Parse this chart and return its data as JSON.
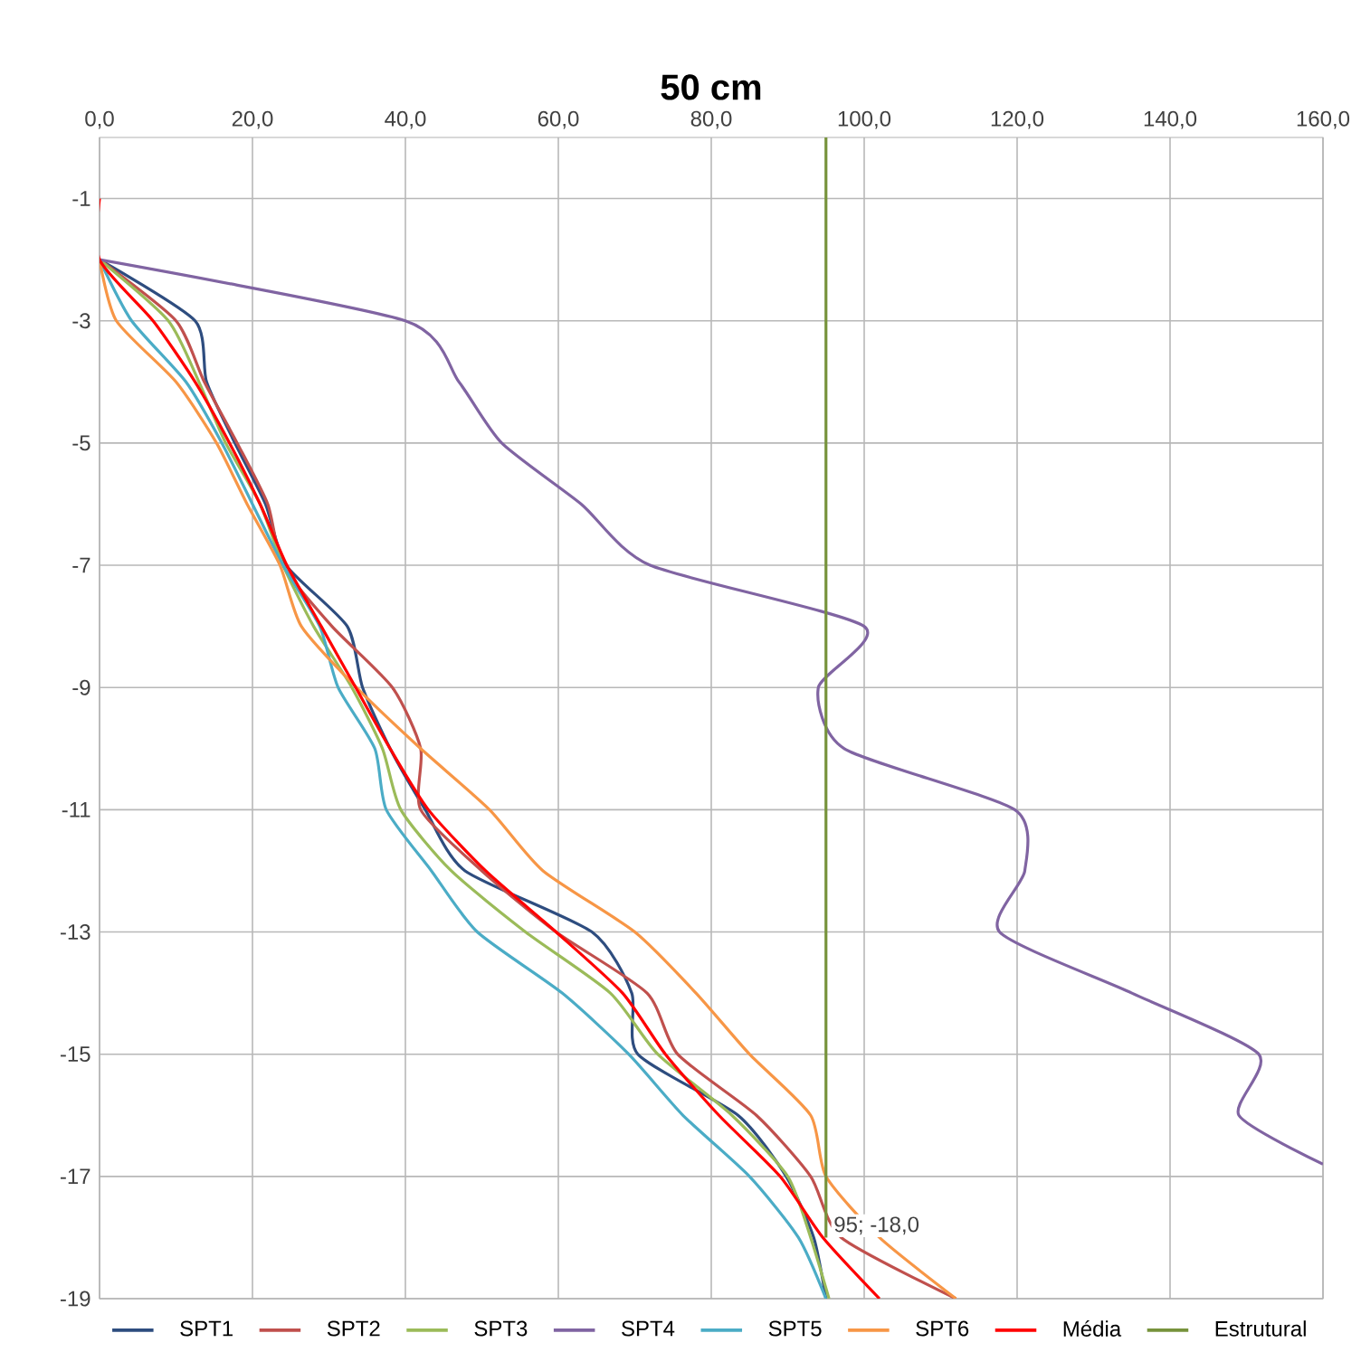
{
  "chart_data": {
    "type": "line",
    "title": "50 cm",
    "xlim": [
      0,
      160
    ],
    "ylim": [
      -19,
      0
    ],
    "xticks": [
      {
        "value": 0,
        "label": "0,0"
      },
      {
        "value": 20,
        "label": "20,0"
      },
      {
        "value": 40,
        "label": "40,0"
      },
      {
        "value": 60,
        "label": "60,0"
      },
      {
        "value": 80,
        "label": "80,0"
      },
      {
        "value": 100,
        "label": "100,0"
      },
      {
        "value": 120,
        "label": "120,0"
      },
      {
        "value": 140,
        "label": "140,0"
      },
      {
        "value": 160,
        "label": "160,0"
      }
    ],
    "yticks": [
      -1,
      -3,
      -5,
      -7,
      -9,
      -11,
      -13,
      -15,
      -17,
      -19
    ],
    "grid": true,
    "legend": "bottom",
    "marker": "none",
    "line_style": "solid",
    "annotations": [
      {
        "text": "95; -18,0",
        "x": 95,
        "y": -18
      }
    ],
    "series": [
      {
        "name": "SPT1",
        "color": "#2e4d7f",
        "x": [
          0,
          12.5,
          14,
          17.7,
          21.7,
          24.4,
          32.4,
          34.4,
          38,
          42.6,
          47.8,
          64.4,
          69.6,
          70.4,
          83.5,
          89.8,
          93.4,
          95
        ],
        "values": [
          -2,
          -3,
          -4,
          -5,
          -6,
          -7,
          -8,
          -9,
          -10,
          -11,
          -12,
          -13,
          -14,
          -15,
          -16,
          -17,
          -18,
          -19
        ]
      },
      {
        "name": "SPT2",
        "color": "#c0504d",
        "x": [
          0,
          10,
          13.7,
          18,
          22,
          24,
          30.4,
          38.3,
          42,
          42,
          50,
          59.7,
          71.6,
          75.6,
          85.9,
          93,
          97,
          112
        ],
        "values": [
          -2,
          -3,
          -4,
          -5,
          -6,
          -7,
          -8,
          -9,
          -10,
          -11,
          -12,
          -13,
          -14,
          -15,
          -16,
          -17,
          -18,
          -19
        ]
      },
      {
        "name": "SPT3",
        "color": "#9bbb59",
        "x": [
          0,
          9,
          13,
          16.5,
          21,
          24,
          28,
          33,
          37,
          39.4,
          46,
          55.7,
          66.8,
          73,
          82.7,
          90,
          93,
          95.4
        ],
        "values": [
          -2,
          -3,
          -4,
          -5,
          -6,
          -7,
          -8,
          -9,
          -10,
          -11,
          -12,
          -13,
          -14,
          -15,
          -16,
          -17,
          -18,
          -19
        ]
      },
      {
        "name": "SPT4",
        "color": "#8064a2",
        "x": [
          0,
          40,
          47,
          52.6,
          63,
          72,
          100,
          94,
          97.4,
          119.7,
          121,
          117.7,
          135,
          151.6,
          149,
          160
        ],
        "values": [
          -2,
          -3,
          -4,
          -5,
          -6,
          -7,
          -8,
          -9,
          -10,
          -11,
          -12,
          -13,
          -14,
          -15,
          -16,
          -16.8
        ]
      },
      {
        "name": "SPT5",
        "color": "#4bacc6",
        "x": [
          0,
          4.2,
          11.3,
          16,
          20,
          24,
          28.8,
          31.2,
          36,
          37.5,
          43.4,
          49.4,
          60.5,
          69.2,
          76.3,
          85,
          91.4,
          95
        ],
        "values": [
          -2,
          -3,
          -4,
          -5,
          -6,
          -7,
          -8,
          -9,
          -10,
          -11,
          -12,
          -13,
          -14,
          -15,
          -16,
          -17,
          -18,
          -19
        ]
      },
      {
        "name": "SPT6",
        "color": "#f79646",
        "x": [
          0,
          2.2,
          10,
          15.3,
          19.3,
          23.6,
          26.4,
          33.6,
          42,
          51,
          58,
          70,
          78,
          85,
          93,
          95,
          102,
          112
        ],
        "values": [
          -2,
          -3,
          -4,
          -5,
          -6,
          -7,
          -8,
          -9,
          -10,
          -11,
          -12,
          -13,
          -14,
          -15,
          -16,
          -17,
          -18,
          -19
        ]
      },
      {
        "name": "Média",
        "color": "#ff0000",
        "x": [
          0,
          0,
          7,
          12.5,
          17,
          21,
          24.5,
          29,
          33.5,
          38,
          43,
          50.5,
          59.7,
          68.4,
          74,
          81,
          89,
          94.6,
          102
        ],
        "values": [
          -1,
          -2,
          -3,
          -4,
          -5,
          -6,
          -7,
          -8,
          -9,
          -10,
          -11,
          -12,
          -13,
          -14,
          -15,
          -16,
          -17,
          -18,
          -19
        ]
      },
      {
        "name": "Estrutural",
        "color": "#77933c",
        "x": [
          95,
          95
        ],
        "values": [
          0,
          -18
        ]
      }
    ]
  }
}
